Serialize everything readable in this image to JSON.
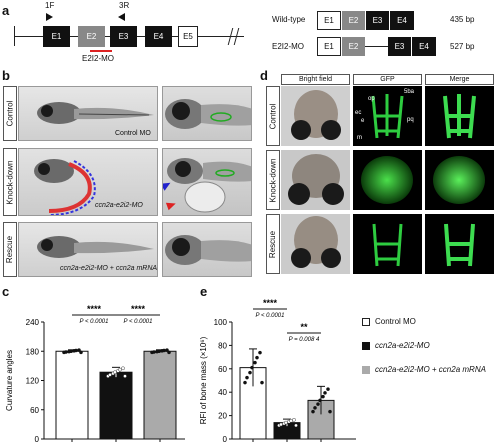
{
  "panels": {
    "a": "a",
    "b": "b",
    "c": "c",
    "d": "d",
    "e": "e"
  },
  "gene": {
    "primer_f": "1F",
    "primer_r": "3R",
    "exons": [
      "E1",
      "E2",
      "E3",
      "E4",
      "E5"
    ],
    "morpholino": "E2I2-MO"
  },
  "transcripts": [
    {
      "name": "Wild-type",
      "exons": [
        "E1",
        "E2",
        "E3",
        "E4"
      ],
      "size": "435 bp"
    },
    {
      "name": "E2I2-MO",
      "exons": [
        "E1",
        "E2",
        "E3",
        "E4"
      ],
      "size": "527 bp"
    }
  ],
  "rows": [
    "Control",
    "Knock-down",
    "Rescue"
  ],
  "b_captions": {
    "control": "Control MO",
    "knockdown": "ccn2a-e2i2-MO",
    "rescue": "ccn2a-e2i2-MO + ccn2a mRNA"
  },
  "d_headers": [
    "Bright field",
    "GFP",
    "Merge"
  ],
  "d_annotations": {
    "ba": "5ba",
    "op": "op",
    "ec": "ec",
    "e": "e",
    "pq": "pq",
    "m": "m"
  },
  "legend": [
    {
      "label": "Control MO",
      "color": "#ffffff"
    },
    {
      "label": "ccn2a-e2i2-MO",
      "color": "#111111"
    },
    {
      "label": "ccn2a-e2i2-MO + ccn2a mRNA",
      "color": "#aaaaaa"
    }
  ],
  "chart_data": [
    {
      "type": "bar",
      "ylabel": "Curvature angles",
      "ylim": [
        0,
        240
      ],
      "yticks": [
        "0",
        "60",
        "120",
        "180",
        "240"
      ],
      "series": [
        {
          "values": [
            180,
            137,
            180
          ],
          "errors": [
            3,
            10,
            3
          ]
        }
      ],
      "colors": [
        "#ffffff",
        "#111111",
        "#aaaaaa"
      ],
      "significance": [
        {
          "stars": "****",
          "p": "P < 0.0001"
        },
        {
          "stars": "****",
          "p": "P < 0.0001"
        }
      ]
    },
    {
      "type": "bar",
      "ylabel": "RFI of bone mass (×10⁶)",
      "ylim": [
        0,
        100
      ],
      "yticks": [
        "0",
        "20",
        "40",
        "60",
        "80",
        "100"
      ],
      "series": [
        {
          "values": [
            61,
            14,
            33
          ],
          "errors": [
            16,
            3,
            12
          ]
        }
      ],
      "colors": [
        "#ffffff",
        "#111111",
        "#aaaaaa"
      ],
      "significance": [
        {
          "stars": "****",
          "p": "P < 0.0001"
        },
        {
          "stars": "**",
          "p": "P = 0.008 4"
        }
      ]
    }
  ]
}
